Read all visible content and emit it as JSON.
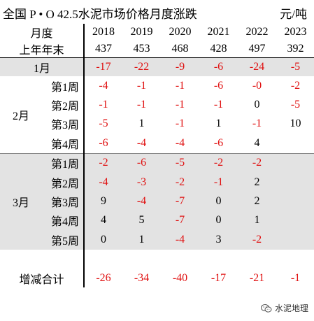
{
  "title": "全国 P • O 42.5水泥市场价格月度涨跌",
  "unit": "元/吨",
  "header": {
    "year_label": "月度",
    "base_label": "上年年末",
    "years": [
      "2018",
      "2019",
      "2020",
      "2021",
      "2022",
      "2023"
    ],
    "base": [
      "437",
      "453",
      "468",
      "428",
      "497",
      "392"
    ]
  },
  "rows": {
    "jan": {
      "label": "1月",
      "values": [
        "-17",
        "-22",
        "-9",
        "-6",
        "-24",
        "-5"
      ]
    },
    "feb": {
      "label": "2月",
      "weeks": [
        {
          "label": "第1周",
          "values": [
            "-4",
            "-1",
            "-1",
            "-6",
            "-0",
            "-2"
          ]
        },
        {
          "label": "第2周",
          "values": [
            "-1",
            "-1",
            "-1",
            "-1",
            "0",
            "-5"
          ]
        },
        {
          "label": "第3周",
          "values": [
            "-5",
            "1",
            "-1",
            "1",
            "-1",
            "10"
          ]
        },
        {
          "label": "第4周",
          "values": [
            "-6",
            "-4",
            "-4",
            "-6",
            "4",
            ""
          ]
        }
      ]
    },
    "mar": {
      "label": "3月",
      "weeks": [
        {
          "label": "第1周",
          "values": [
            "-2",
            "-6",
            "-5",
            "-2",
            "-2",
            ""
          ]
        },
        {
          "label": "第2周",
          "values": [
            "-4",
            "-3",
            "-2",
            "-1",
            "2",
            ""
          ]
        },
        {
          "label": "第3周",
          "values": [
            "9",
            "-4",
            "-7",
            "0",
            "2",
            ""
          ]
        },
        {
          "label": "第4周",
          "values": [
            "4",
            "5",
            "-7",
            "0",
            "1",
            ""
          ]
        },
        {
          "label": "第5周",
          "values": [
            "0",
            "1",
            "-4",
            "3",
            "-2",
            ""
          ]
        }
      ]
    },
    "total": {
      "label": "增减合计",
      "values": [
        "-26",
        "-34",
        "-40",
        "-17",
        "-21",
        "-1"
      ]
    }
  },
  "watermark": {
    "text": "水泥地理",
    "icon": "wechat-icon"
  },
  "colors": {
    "negative": "#e01010",
    "positive": "#000000",
    "shade": "#e3e3e3"
  }
}
